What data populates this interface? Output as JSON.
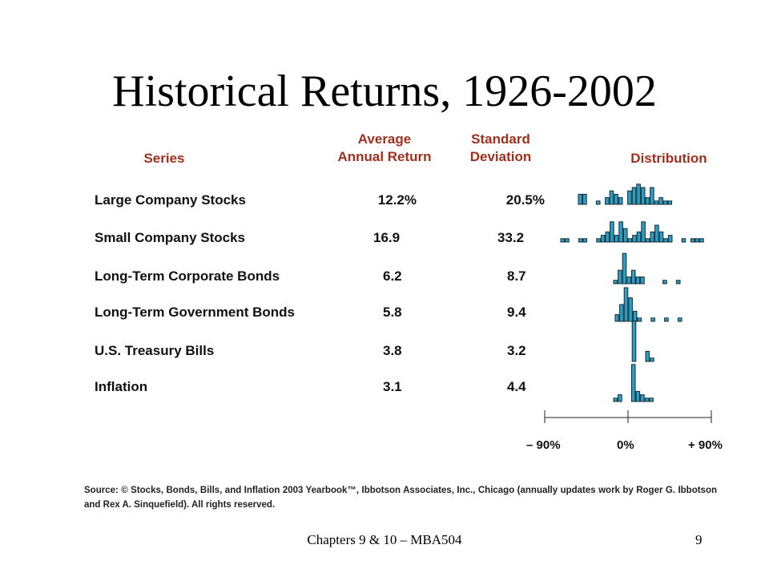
{
  "title": "Historical Returns, 1926-2002",
  "headers": {
    "series": "Series",
    "avg_line1": "Average",
    "avg_line2": "Annual Return",
    "std_line1": "Standard",
    "std_line2": "Deviation",
    "distribution": "Distribution"
  },
  "rows": [
    {
      "name": "Large Company Stocks",
      "avg": "12.2%",
      "std": "20.5%"
    },
    {
      "name": "Small Company Stocks",
      "avg": "16.9",
      "std": "33.2"
    },
    {
      "name": "Long-Term Corporate Bonds",
      "avg": "6.2",
      "std": "8.7"
    },
    {
      "name": "Long-Term Government Bonds",
      "avg": "5.8",
      "std": "9.4"
    },
    {
      "name": "U.S. Treasury Bills",
      "avg": "3.8",
      "std": "3.2"
    },
    {
      "name": "Inflation",
      "avg": "3.1",
      "std": "4.4"
    }
  ],
  "axis": {
    "left_label": "– 90%",
    "center_label": "0%",
    "right_label": "+ 90%"
  },
  "bar_color": "#2a9fc4",
  "source": "Source: © Stocks, Bonds, Bills, and Inflation 2003 Yearbook™, Ibbotson Associates, Inc., Chicago (annually updates work by Roger G. Ibbotson and Rex A. Sinquefield). All rights reserved.",
  "footer": {
    "left": "Chapters 9 & 10   – MBA504",
    "page": "9"
  }
}
